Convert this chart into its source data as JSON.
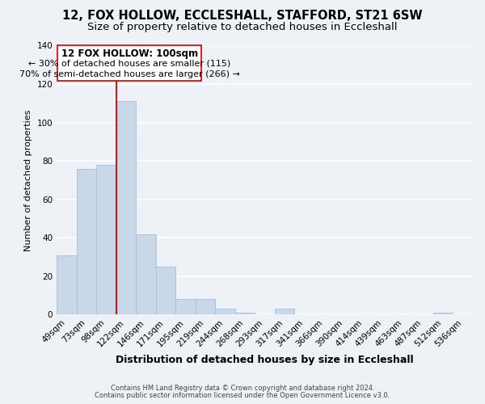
{
  "title": "12, FOX HOLLOW, ECCLESHALL, STAFFORD, ST21 6SW",
  "subtitle": "Size of property relative to detached houses in Eccleshall",
  "xlabel": "Distribution of detached houses by size in Eccleshall",
  "ylabel": "Number of detached properties",
  "bar_labels": [
    "49sqm",
    "73sqm",
    "98sqm",
    "122sqm",
    "146sqm",
    "171sqm",
    "195sqm",
    "219sqm",
    "244sqm",
    "268sqm",
    "293sqm",
    "317sqm",
    "341sqm",
    "366sqm",
    "390sqm",
    "414sqm",
    "439sqm",
    "463sqm",
    "487sqm",
    "512sqm",
    "536sqm"
  ],
  "bar_values": [
    31,
    76,
    78,
    111,
    42,
    25,
    8,
    8,
    3,
    1,
    0,
    3,
    0,
    0,
    0,
    0,
    0,
    0,
    0,
    1,
    0
  ],
  "bar_color": "#c8d8e8",
  "bar_edge_color": "#a8bfd0",
  "ylim": [
    0,
    140
  ],
  "yticks": [
    0,
    20,
    40,
    60,
    80,
    100,
    120,
    140
  ],
  "vline_x_index": 2,
  "vline_color": "#cc0000",
  "annotation_title": "12 FOX HOLLOW: 100sqm",
  "annotation_line1": "← 30% of detached houses are smaller (115)",
  "annotation_line2": "70% of semi-detached houses are larger (266) →",
  "annotation_box_facecolor": "#ffffff",
  "annotation_box_edgecolor": "#cc0000",
  "footer_line1": "Contains HM Land Registry data © Crown copyright and database right 2024.",
  "footer_line2": "Contains public sector information licensed under the Open Government Licence v3.0.",
  "background_color": "#eef2f7",
  "grid_color": "#ffffff",
  "title_fontsize": 10.5,
  "subtitle_fontsize": 9.5,
  "ylabel_fontsize": 8,
  "xlabel_fontsize": 9,
  "tick_fontsize": 7.5,
  "footer_fontsize": 6
}
